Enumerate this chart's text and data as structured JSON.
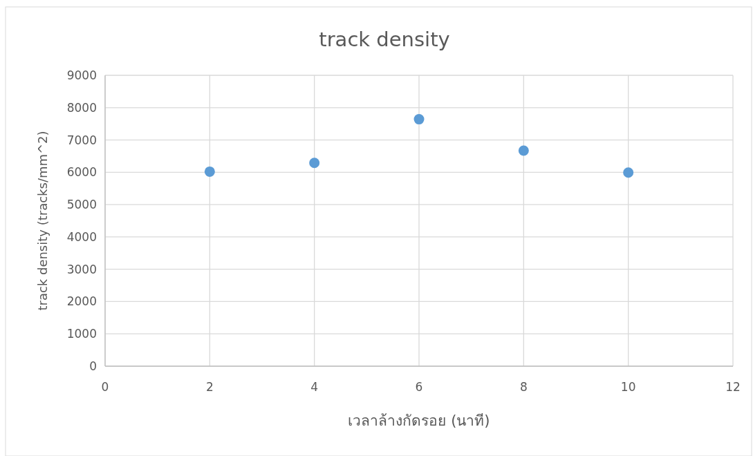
{
  "chart_data": {
    "type": "scatter",
    "title": "track density",
    "xlabel": "เวลาล้างกัดรอย (นาที)",
    "ylabel": "track density (tracks/mm^2)",
    "x": [
      2,
      4,
      6,
      8,
      10
    ],
    "series": [
      {
        "color": "#5b9bd5",
        "values": [
          6020,
          6290,
          7640,
          6670,
          5990
        ]
      }
    ],
    "xlim": [
      0,
      12
    ],
    "xticks": [
      0,
      2,
      4,
      6,
      8,
      10,
      12
    ],
    "ylim": [
      0,
      9000
    ],
    "yticks": [
      0,
      1000,
      2000,
      3000,
      4000,
      5000,
      6000,
      7000,
      8000,
      9000
    ],
    "grid": true,
    "marker": "circle"
  }
}
